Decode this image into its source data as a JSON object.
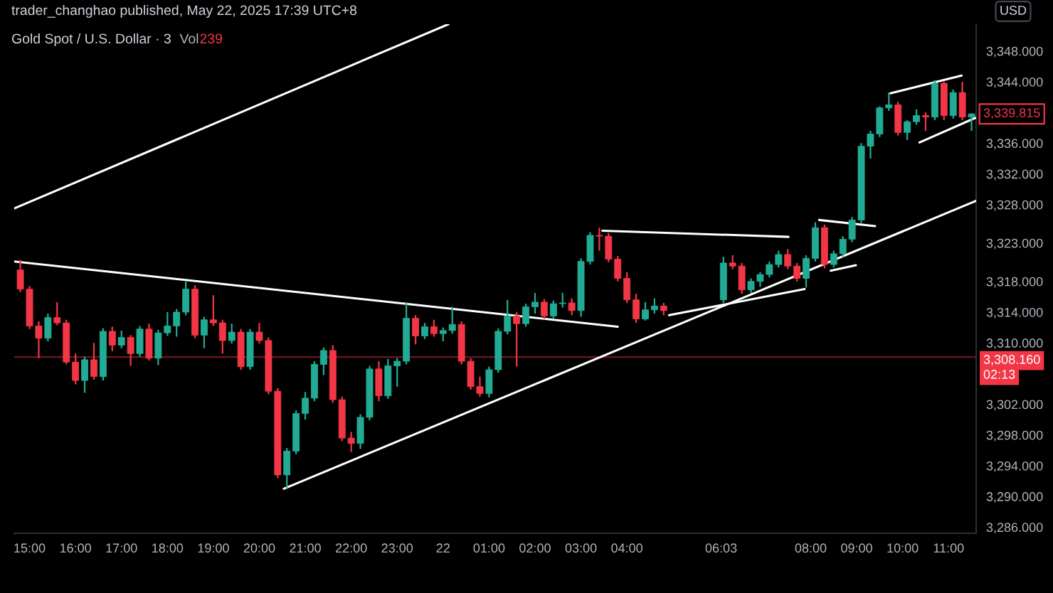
{
  "chart_data": {
    "type": "candlestick",
    "title": "Gold Spot / U.S. Dollar · 3",
    "x": [
      "2025-05-21T14:48",
      "2025-05-21T15:00",
      "2025-05-21T15:12",
      "2025-05-21T15:24",
      "2025-05-21T15:36",
      "2025-05-21T15:48",
      "2025-05-21T16:00",
      "2025-05-21T16:12",
      "2025-05-21T16:24",
      "2025-05-21T16:36",
      "2025-05-21T16:48",
      "2025-05-21T17:00",
      "2025-05-21T17:12",
      "2025-05-21T17:24",
      "2025-05-21T17:36",
      "2025-05-21T17:48",
      "2025-05-21T18:00",
      "2025-05-21T18:12",
      "2025-05-21T18:24",
      "2025-05-21T18:36",
      "2025-05-21T18:48",
      "2025-05-21T19:00",
      "2025-05-21T19:12",
      "2025-05-21T19:24",
      "2025-05-21T19:36",
      "2025-05-21T19:48",
      "2025-05-21T20:00",
      "2025-05-21T20:12",
      "2025-05-21T20:24",
      "2025-05-21T20:36",
      "2025-05-21T20:48",
      "2025-05-21T21:00",
      "2025-05-21T21:12",
      "2025-05-21T21:24",
      "2025-05-21T21:36",
      "2025-05-21T21:48",
      "2025-05-21T22:00",
      "2025-05-21T22:12",
      "2025-05-21T22:24",
      "2025-05-21T22:36",
      "2025-05-21T22:48",
      "2025-05-21T23:00",
      "2025-05-21T23:12",
      "2025-05-21T23:24",
      "2025-05-21T23:36",
      "2025-05-21T23:48",
      "2025-05-22T00:00",
      "2025-05-22T00:12",
      "2025-05-22T00:24",
      "2025-05-22T00:36",
      "2025-05-22T00:48",
      "2025-05-22T01:00",
      "2025-05-22T01:12",
      "2025-05-22T01:24",
      "2025-05-22T01:36",
      "2025-05-22T01:48",
      "2025-05-22T02:00",
      "2025-05-22T02:12",
      "2025-05-22T02:24",
      "2025-05-22T02:36",
      "2025-05-22T02:48",
      "2025-05-22T03:00",
      "2025-05-22T03:12",
      "2025-05-22T03:24",
      "2025-05-22T03:36",
      "2025-05-22T03:48",
      "2025-05-22T04:00",
      "2025-05-22T04:12",
      "2025-05-22T04:24",
      "2025-05-22T04:36",
      "2025-05-22T04:48",
      "2025-05-22T06:06",
      "2025-05-22T06:18",
      "2025-05-22T06:30",
      "2025-05-22T06:42",
      "2025-05-22T06:54",
      "2025-05-22T07:06",
      "2025-05-22T07:18",
      "2025-05-22T07:30",
      "2025-05-22T07:42",
      "2025-05-22T07:54",
      "2025-05-22T08:06",
      "2025-05-22T08:18",
      "2025-05-22T08:30",
      "2025-05-22T08:42",
      "2025-05-22T08:54",
      "2025-05-22T09:06",
      "2025-05-22T09:18",
      "2025-05-22T09:30",
      "2025-05-22T09:42",
      "2025-05-22T09:54",
      "2025-05-22T10:06",
      "2025-05-22T10:18",
      "2025-05-22T10:30",
      "2025-05-22T10:42",
      "2025-05-22T10:54",
      "2025-05-22T11:06",
      "2025-05-22T11:18",
      "2025-05-22T11:30"
    ],
    "ohlc": [
      [
        3319.5,
        3320.8,
        3316.6,
        3317.0
      ],
      [
        3317.0,
        3317.4,
        3311.8,
        3312.2
      ],
      [
        3312.2,
        3312.8,
        3308.0,
        3310.6
      ],
      [
        3310.6,
        3313.8,
        3310.2,
        3313.3
      ],
      [
        3313.3,
        3315.3,
        3312.3,
        3312.6
      ],
      [
        3312.6,
        3313.0,
        3307.2,
        3307.5
      ],
      [
        3307.5,
        3308.6,
        3304.6,
        3305.1
      ],
      [
        3305.1,
        3308.2,
        3303.5,
        3307.8
      ],
      [
        3307.8,
        3310.0,
        3305.2,
        3305.6
      ],
      [
        3305.6,
        3311.9,
        3305.1,
        3311.5
      ],
      [
        3311.5,
        3312.1,
        3308.9,
        3309.7
      ],
      [
        3309.7,
        3311.6,
        3309.3,
        3310.7
      ],
      [
        3310.7,
        3311.0,
        3307.0,
        3308.6
      ],
      [
        3308.6,
        3312.2,
        3308.2,
        3311.8
      ],
      [
        3311.8,
        3312.5,
        3307.7,
        3308.0
      ],
      [
        3308.0,
        3311.7,
        3307.1,
        3311.3
      ],
      [
        3311.3,
        3314.0,
        3310.9,
        3312.2
      ],
      [
        3312.2,
        3314.4,
        3310.8,
        3314.0
      ],
      [
        3314.0,
        3318.0,
        3313.6,
        3317.0
      ],
      [
        3317.0,
        3317.5,
        3310.6,
        3311.0
      ],
      [
        3311.0,
        3313.4,
        3309.3,
        3313.0
      ],
      [
        3313.0,
        3316.2,
        3312.2,
        3312.6
      ],
      [
        3312.6,
        3313.0,
        3308.6,
        3310.3
      ],
      [
        3310.3,
        3312.5,
        3309.9,
        3311.4
      ],
      [
        3311.4,
        3311.8,
        3306.5,
        3306.9
      ],
      [
        3306.9,
        3311.8,
        3306.5,
        3311.4
      ],
      [
        3311.4,
        3312.6,
        3309.9,
        3310.3
      ],
      [
        3310.3,
        3310.7,
        3303.3,
        3303.7
      ],
      [
        3303.7,
        3304.1,
        3292.4,
        3292.8
      ],
      [
        3292.8,
        3296.3,
        3291.1,
        3295.9
      ],
      [
        3295.9,
        3301.2,
        3295.5,
        3300.8
      ],
      [
        3300.8,
        3303.6,
        3300.0,
        3302.8
      ],
      [
        3302.8,
        3307.6,
        3302.4,
        3307.2
      ],
      [
        3307.2,
        3309.4,
        3305.8,
        3309.0
      ],
      [
        3309.0,
        3309.7,
        3302.2,
        3302.6
      ],
      [
        3302.6,
        3303.0,
        3297.2,
        3297.6
      ],
      [
        3297.6,
        3298.4,
        3295.8,
        3296.9
      ],
      [
        3296.9,
        3300.7,
        3296.2,
        3300.3
      ],
      [
        3300.3,
        3307.0,
        3299.9,
        3306.6
      ],
      [
        3306.6,
        3307.6,
        3302.4,
        3303.1
      ],
      [
        3303.1,
        3307.9,
        3302.7,
        3307.0
      ],
      [
        3307.0,
        3308.0,
        3304.3,
        3307.6
      ],
      [
        3307.6,
        3315.3,
        3307.2,
        3313.2
      ],
      [
        3313.2,
        3313.6,
        3309.8,
        3310.9
      ],
      [
        3310.9,
        3312.6,
        3310.5,
        3312.1
      ],
      [
        3312.1,
        3313.0,
        3310.8,
        3311.2
      ],
      [
        3311.2,
        3312.0,
        3310.2,
        3311.6
      ],
      [
        3311.6,
        3314.7,
        3311.2,
        3312.4
      ],
      [
        3312.4,
        3312.8,
        3307.2,
        3307.6
      ],
      [
        3307.6,
        3308.0,
        3303.9,
        3304.3
      ],
      [
        3304.3,
        3305.6,
        3303.0,
        3303.4
      ],
      [
        3303.4,
        3306.9,
        3302.9,
        3306.5
      ],
      [
        3306.5,
        3311.9,
        3306.1,
        3311.5
      ],
      [
        3311.5,
        3315.6,
        3311.1,
        3313.5
      ],
      [
        3313.5,
        3314.0,
        3306.9,
        3312.5
      ],
      [
        3312.5,
        3315.1,
        3312.1,
        3314.7
      ],
      [
        3314.7,
        3316.5,
        3313.8,
        3315.3
      ],
      [
        3315.3,
        3315.7,
        3313.1,
        3313.5
      ],
      [
        3313.5,
        3315.5,
        3313.1,
        3315.1
      ],
      [
        3315.1,
        3316.5,
        3314.6,
        3315.2
      ],
      [
        3315.2,
        3315.8,
        3313.6,
        3314.2
      ],
      [
        3314.2,
        3321.0,
        3313.4,
        3320.6
      ],
      [
        3320.6,
        3324.4,
        3320.2,
        3324.0
      ],
      [
        3324.0,
        3325.0,
        3322.0,
        3323.9
      ],
      [
        3323.9,
        3324.3,
        3320.5,
        3320.9
      ],
      [
        3320.9,
        3321.3,
        3318.0,
        3318.4
      ],
      [
        3318.4,
        3319.2,
        3315.2,
        3315.6
      ],
      [
        3315.6,
        3316.4,
        3312.6,
        3313.1
      ],
      [
        3313.1,
        3315.3,
        3312.9,
        3314.3
      ],
      [
        3314.3,
        3315.8,
        3313.8,
        3314.8
      ],
      [
        3314.8,
        3315.2,
        3313.6,
        3314.2
      ],
      [
        3315.6,
        3321.2,
        3315.2,
        3320.4
      ],
      [
        3320.4,
        3321.4,
        3319.6,
        3320.0
      ],
      [
        3320.0,
        3320.4,
        3316.4,
        3316.9
      ],
      [
        3316.9,
        3318.4,
        3316.5,
        3318.0
      ],
      [
        3318.0,
        3319.2,
        3317.3,
        3318.9
      ],
      [
        3318.9,
        3320.6,
        3318.5,
        3320.2
      ],
      [
        3320.2,
        3322.0,
        3319.8,
        3321.5
      ],
      [
        3321.5,
        3322.2,
        3319.6,
        3320.0
      ],
      [
        3320.0,
        3320.4,
        3318.0,
        3318.4
      ],
      [
        3318.4,
        3321.4,
        3317.2,
        3321.0
      ],
      [
        3321.0,
        3325.7,
        3320.6,
        3325.0
      ],
      [
        3325.0,
        3325.4,
        3319.7,
        3320.2
      ],
      [
        3320.2,
        3322.0,
        3319.8,
        3321.6
      ],
      [
        3321.6,
        3323.9,
        3321.2,
        3323.5
      ],
      [
        3323.5,
        3326.4,
        3323.1,
        3326.0
      ],
      [
        3326.0,
        3336.0,
        3325.6,
        3335.6
      ],
      [
        3335.6,
        3337.6,
        3334.0,
        3337.2
      ],
      [
        3337.2,
        3340.8,
        3336.8,
        3340.6
      ],
      [
        3340.6,
        3342.6,
        3340.2,
        3341.0
      ],
      [
        3341.0,
        3341.4,
        3337.0,
        3337.4
      ],
      [
        3337.4,
        3339.0,
        3336.4,
        3338.8
      ],
      [
        3338.8,
        3340.4,
        3338.4,
        3339.6
      ],
      [
        3339.6,
        3340.0,
        3337.6,
        3339.4
      ],
      [
        3339.4,
        3344.2,
        3339.0,
        3343.8
      ],
      [
        3343.8,
        3344.0,
        3339.0,
        3339.6
      ],
      [
        3339.6,
        3343.0,
        3339.2,
        3342.6
      ],
      [
        3342.6,
        3344.0,
        3339.0,
        3339.4
      ],
      [
        3339.4,
        3339.9,
        3337.6,
        3339.815
      ]
    ],
    "colors": [
      "#f23645",
      "#f23645",
      "#f23645",
      "#22ab94",
      "#f23645",
      "#f23645",
      "#f23645",
      "#22ab94",
      "#f23645",
      "#22ab94",
      "#f23645",
      "#22ab94",
      "#f23645",
      "#22ab94",
      "#f23645",
      "#22ab94",
      "#22ab94",
      "#22ab94",
      "#22ab94",
      "#f23645",
      "#22ab94",
      "#f23645",
      "#f23645",
      "#22ab94",
      "#f23645",
      "#22ab94",
      "#f23645",
      "#f23645",
      "#f23645",
      "#22ab94",
      "#22ab94",
      "#22ab94",
      "#22ab94",
      "#22ab94",
      "#f23645",
      "#f23645",
      "#f23645",
      "#22ab94",
      "#22ab94",
      "#f23645",
      "#22ab94",
      "#22ab94",
      "#22ab94",
      "#f23645",
      "#22ab94",
      "#f23645",
      "#22ab94",
      "#22ab94",
      "#f23645",
      "#f23645",
      "#f23645",
      "#22ab94",
      "#22ab94",
      "#22ab94",
      "#f23645",
      "#22ab94",
      "#22ab94",
      "#f23645",
      "#22ab94",
      "#22ab94",
      "#f23645",
      "#22ab94",
      "#22ab94",
      "#f23645",
      "#f23645",
      "#f23645",
      "#f23645",
      "#f23645",
      "#22ab94",
      "#22ab94",
      "#f23645",
      "#22ab94",
      "#f23645",
      "#f23645",
      "#22ab94",
      "#22ab94",
      "#22ab94",
      "#22ab94",
      "#f23645",
      "#f23645",
      "#22ab94",
      "#22ab94",
      "#f23645",
      "#22ab94",
      "#22ab94",
      "#22ab94",
      "#22ab94",
      "#22ab94",
      "#22ab94",
      "#22ab94",
      "#f23645",
      "#22ab94",
      "#22ab94",
      "#f23645",
      "#22ab94",
      "#f23645",
      "#22ab94",
      "#f23645",
      "#22ab94"
    ],
    "series": [
      {
        "type": "line",
        "color": "#ffffff",
        "x": [
          "2025-05-21T14:40",
          "2025-05-22T00:07"
        ],
        "values": [
          3327.5,
          3351.5
        ]
      },
      {
        "type": "line",
        "color": "#ffffff",
        "x": [
          "2025-05-21T14:40",
          "2025-05-22T03:48"
        ],
        "values": [
          3320.6,
          3312.1
        ]
      },
      {
        "type": "line",
        "color": "#ffffff",
        "x": [
          "2025-05-21T20:32",
          "2025-05-22T11:36"
        ],
        "values": [
          3291.0,
          3328.5
        ]
      },
      {
        "type": "line",
        "color": "#ffffff",
        "x": [
          "2025-05-22T03:28",
          "2025-05-22T07:31"
        ],
        "values": [
          3324.6,
          3323.8
        ]
      },
      {
        "type": "line",
        "color": "#ffffff",
        "x": [
          "2025-05-22T04:55",
          "2025-05-22T07:52"
        ],
        "values": [
          3313.6,
          3317.0
        ]
      },
      {
        "type": "line",
        "color": "#ffffff",
        "x": [
          "2025-05-22T08:11",
          "2025-05-22T09:24"
        ],
        "values": [
          3326.0,
          3325.2
        ]
      },
      {
        "type": "line",
        "color": "#ffffff",
        "x": [
          "2025-05-22T08:26",
          "2025-05-22T08:59"
        ],
        "values": [
          3319.4,
          3320.1
        ]
      },
      {
        "type": "line",
        "color": "#ffffff",
        "x": [
          "2025-05-22T09:44",
          "2025-05-22T11:17"
        ],
        "values": [
          3342.5,
          3344.8
        ]
      },
      {
        "type": "line",
        "color": "#ffffff",
        "x": [
          "2025-05-22T10:22",
          "2025-05-22T11:35"
        ],
        "values": [
          3336.1,
          3339.3
        ]
      }
    ],
    "xlim": [
      "2025-05-21T14:40",
      "2025-05-22T11:36"
    ],
    "xticks": [
      {
        "value": "2025-05-21T15:00",
        "label": "15:00"
      },
      {
        "value": "2025-05-21T16:00",
        "label": "16:00"
      },
      {
        "value": "2025-05-21T17:00",
        "label": "17:00"
      },
      {
        "value": "2025-05-21T18:00",
        "label": "18:00"
      },
      {
        "value": "2025-05-21T19:00",
        "label": "19:00"
      },
      {
        "value": "2025-05-21T20:00",
        "label": "20:00"
      },
      {
        "value": "2025-05-21T21:00",
        "label": "21:00"
      },
      {
        "value": "2025-05-21T22:00",
        "label": "22:00"
      },
      {
        "value": "2025-05-21T23:00",
        "label": "23:00"
      },
      {
        "value": "2025-05-22T00:00",
        "label": "22"
      },
      {
        "value": "2025-05-22T01:00",
        "label": "01:00"
      },
      {
        "value": "2025-05-22T02:00",
        "label": "02:00"
      },
      {
        "value": "2025-05-22T03:00",
        "label": "03:00"
      },
      {
        "value": "2025-05-22T04:00",
        "label": "04:00"
      },
      {
        "value": "2025-05-22T06:03",
        "label": "06:03"
      },
      {
        "value": "2025-05-22T08:00",
        "label": "08:00"
      },
      {
        "value": "2025-05-22T09:00",
        "label": "09:00"
      },
      {
        "value": "2025-05-22T10:00",
        "label": "10:00"
      },
      {
        "value": "2025-05-22T11:00",
        "label": "11:00"
      }
    ],
    "ylim": [
      3285.2,
      3351.5
    ],
    "yticks": [
      {
        "value": 3286,
        "label": "3,286.000"
      },
      {
        "value": 3290,
        "label": "3,290.000"
      },
      {
        "value": 3294,
        "label": "3,294.000"
      },
      {
        "value": 3298,
        "label": "3,298.000"
      },
      {
        "value": 3302,
        "label": "3,302.000"
      },
      {
        "value": 3310,
        "label": "3,310.000"
      },
      {
        "value": 3314,
        "label": "3,314.000"
      },
      {
        "value": 3318,
        "label": "3,318.000"
      },
      {
        "value": 3323,
        "label": "3,323.000"
      },
      {
        "value": 3328,
        "label": "3,328.000"
      },
      {
        "value": 3332,
        "label": "3,332.000"
      },
      {
        "value": 3336,
        "label": "3,336.000"
      },
      {
        "value": 3344,
        "label": "3,344.000"
      },
      {
        "value": 3348,
        "label": "3,348.000"
      }
    ],
    "ref_lines": [
      {
        "axis": "y",
        "value": 3308.16,
        "label": "3,308.160",
        "color": "#f23645"
      }
    ],
    "annotations": [
      "trader_changhao published, May 22, 2025 17:39 UTC+8",
      "Vol",
      "239",
      "USD",
      "02:13",
      "3,339.815"
    ]
  }
}
